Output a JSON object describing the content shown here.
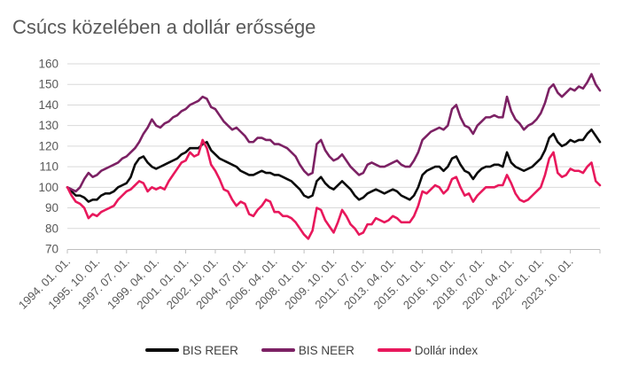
{
  "title": "Csúcs közelében a dollár erőssége",
  "colors": {
    "background": "#ffffff",
    "title_text": "#595959",
    "axis_text": "#595959",
    "gridline": "#d9d9d9",
    "axis_line": "#bfbfbf",
    "series_bis_reer": "#0b0b0b",
    "series_bis_neer": "#7c2164",
    "series_dollar_index": "#e8185c"
  },
  "chart_data": {
    "type": "line",
    "title": "Csúcs közelében a dollár erőssége",
    "xlabel": "",
    "ylabel": "",
    "x_start": "1994-01-01",
    "x_step_months": 3,
    "x_tick_interval_months": 21,
    "x_tick_labels": [
      "1994. 01. 01.",
      "1995. 10. 01.",
      "1997. 07. 01.",
      "1999. 04. 01.",
      "2001. 01. 01.",
      "2002. 10. 01.",
      "2004. 07. 01.",
      "2006. 04. 01.",
      "2008. 01. 01.",
      "2009. 10. 01.",
      "2011. 07. 01.",
      "2013. 04. 01.",
      "2015. 01. 01.",
      "2016. 10. 01.",
      "2018. 07. 01.",
      "2020. 04. 01.",
      "2022. 01. 01.",
      "2023. 10. 01."
    ],
    "ylim": [
      70,
      160
    ],
    "yticks": [
      70,
      80,
      90,
      100,
      110,
      120,
      130,
      140,
      150,
      160
    ],
    "grid": "horizontal",
    "legend_position": "bottom",
    "series": [
      {
        "name": "BIS REER",
        "color": "#0b0b0b",
        "values": [
          100,
          98,
          96,
          96,
          95,
          93,
          94,
          94,
          96,
          97,
          97,
          98,
          100,
          101,
          102,
          105,
          111,
          114,
          115,
          112,
          110,
          109,
          110,
          111,
          112,
          113,
          114,
          116,
          117,
          119,
          119,
          119,
          121,
          122,
          118,
          116,
          114,
          113,
          112,
          111,
          110,
          108,
          107,
          106,
          106,
          107,
          108,
          107,
          107,
          106,
          106,
          105,
          104,
          103,
          101,
          99,
          96,
          95,
          96,
          103,
          105,
          102,
          100,
          99,
          101,
          103,
          101,
          99,
          96,
          94,
          95,
          97,
          98,
          99,
          98,
          97,
          98,
          99,
          98,
          96,
          95,
          94,
          96,
          100,
          106,
          108,
          109,
          110,
          110,
          108,
          110,
          114,
          115,
          111,
          108,
          107,
          104,
          107,
          109,
          110,
          110,
          111,
          111,
          110,
          117,
          112,
          110,
          109,
          108,
          109,
          110,
          112,
          114,
          118,
          124,
          126,
          122,
          120,
          121,
          123,
          122,
          123,
          123,
          126,
          128,
          125,
          122
        ]
      },
      {
        "name": "BIS NEER",
        "color": "#7c2164",
        "values": [
          100,
          99,
          98,
          100,
          104,
          107,
          105,
          106,
          108,
          109,
          110,
          111,
          112,
          114,
          115,
          117,
          119,
          122,
          126,
          129,
          133,
          130,
          129,
          131,
          132,
          134,
          135,
          137,
          138,
          140,
          141,
          142,
          144,
          143,
          139,
          138,
          135,
          132,
          130,
          128,
          129,
          127,
          125,
          122,
          122,
          124,
          124,
          123,
          123,
          121,
          121,
          120,
          119,
          117,
          115,
          111,
          108,
          106,
          107,
          121,
          123,
          118,
          115,
          113,
          114,
          116,
          113,
          110,
          108,
          106,
          107,
          111,
          112,
          111,
          110,
          110,
          111,
          112,
          113,
          111,
          110,
          110,
          113,
          117,
          123,
          125,
          127,
          128,
          129,
          128,
          130,
          138,
          140,
          134,
          130,
          129,
          126,
          130,
          132,
          134,
          134,
          135,
          134,
          134,
          144,
          137,
          133,
          131,
          128,
          130,
          131,
          133,
          136,
          141,
          148,
          150,
          146,
          144,
          146,
          148,
          147,
          149,
          148,
          151,
          155,
          150,
          147
        ]
      },
      {
        "name": "Dollár index",
        "color": "#e8185c",
        "values": [
          100,
          96,
          93,
          92,
          90,
          85,
          87,
          86,
          88,
          89,
          90,
          91,
          94,
          96,
          98,
          99,
          101,
          103,
          102,
          98,
          100,
          99,
          100,
          99,
          103,
          106,
          109,
          112,
          113,
          117,
          115,
          116,
          123,
          119,
          111,
          108,
          104,
          99,
          98,
          94,
          91,
          93,
          92,
          87,
          86,
          89,
          91,
          94,
          93,
          88,
          88,
          86,
          86,
          85,
          83,
          80,
          77,
          75,
          79,
          90,
          89,
          84,
          81,
          78,
          83,
          89,
          86,
          82,
          80,
          77,
          78,
          82,
          82,
          85,
          84,
          83,
          84,
          86,
          85,
          83,
          83,
          83,
          86,
          91,
          98,
          97,
          99,
          101,
          100,
          97,
          99,
          104,
          105,
          100,
          96,
          97,
          93,
          96,
          98,
          100,
          100,
          100,
          101,
          101,
          106,
          102,
          97,
          94,
          93,
          94,
          96,
          98,
          100,
          106,
          114,
          117,
          107,
          105,
          106,
          109,
          108,
          108,
          107,
          110,
          112,
          103,
          101
        ]
      }
    ],
    "legend": [
      "BIS REER",
      "BIS NEER",
      "Dollár index"
    ]
  }
}
